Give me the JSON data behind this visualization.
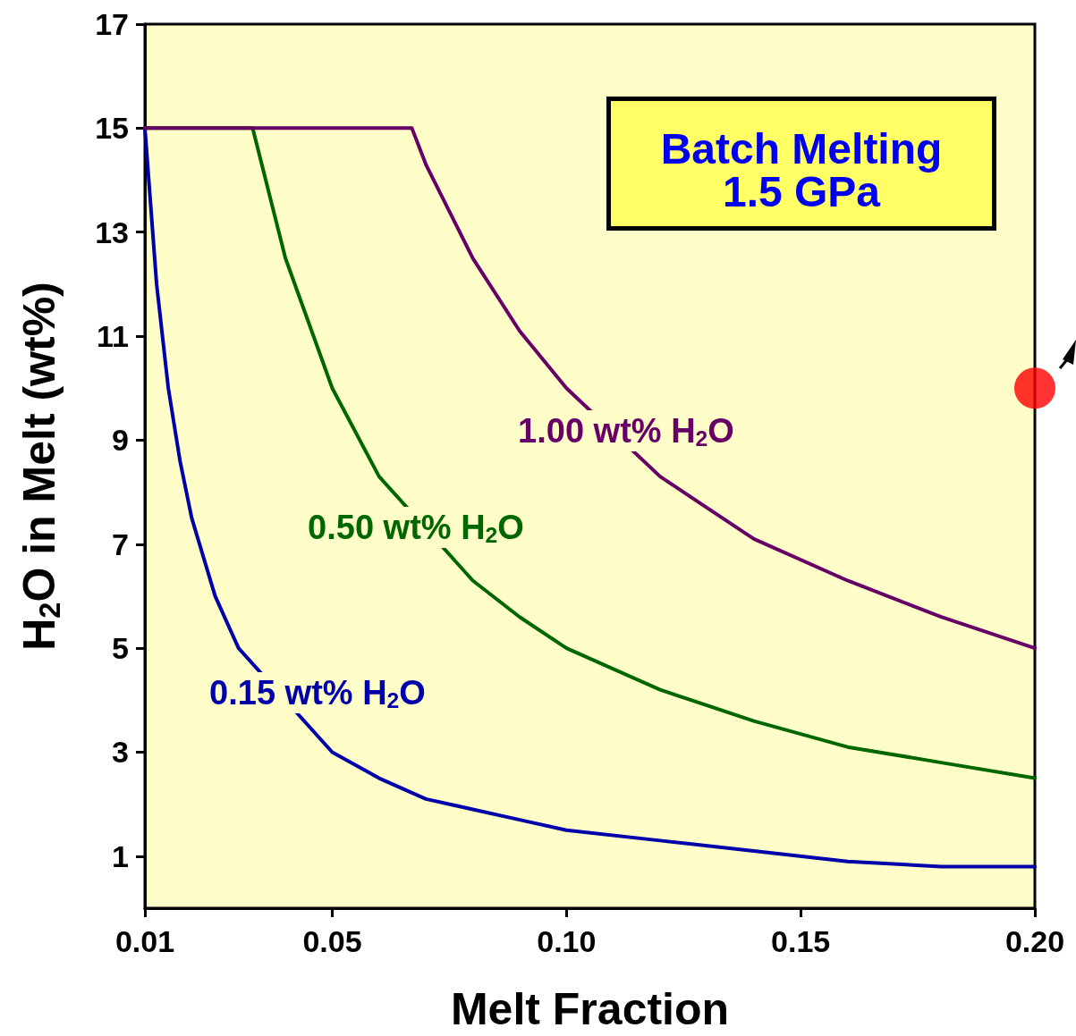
{
  "chart_data": {
    "type": "line",
    "title": "Batch Melting",
    "subtitle": "1.5 GPa",
    "xlabel": "Melt Fraction",
    "ylabel": "H$_{2}$O in Melt (wt%)",
    "xlim": [
      0.01,
      0.2
    ],
    "xticks": [
      0.01,
      0.05,
      {
        "value": 0.1,
        "label": "0.10"
      },
      0.15,
      {
        "value": 0.2,
        "label": "0.20"
      }
    ],
    "ylim": [
      0,
      17
    ],
    "yticks": [
      1,
      3,
      5,
      7,
      9,
      11,
      13,
      15,
      17
    ],
    "grid": false,
    "marker": "none",
    "line_style": "solid",
    "series": [
      {
        "color": "#0000aa",
        "x": [
          0.01,
          0.0125,
          0.015,
          0.0175,
          0.02,
          0.025,
          0.03,
          0.05,
          0.06,
          0.07,
          0.08,
          0.09,
          0.1,
          0.12,
          0.14,
          0.16,
          0.18,
          0.2
        ],
        "values": [
          15,
          12,
          10,
          8.6,
          7.5,
          6,
          5,
          3,
          2.5,
          2.1,
          1.9,
          1.7,
          1.5,
          1.3,
          1.1,
          0.9,
          0.8,
          0.8
        ]
      },
      {
        "color": "#006600",
        "x": [
          0.01,
          0.033,
          0.04,
          0.05,
          0.06,
          0.08,
          0.09,
          0.1,
          0.12,
          0.14,
          0.16,
          0.18,
          0.2
        ],
        "values": [
          15,
          15,
          12.5,
          10,
          8.3,
          6.3,
          5.6,
          5,
          4.2,
          3.6,
          3.1,
          2.8,
          2.5
        ]
      },
      {
        "color": "#660066",
        "x": [
          0.01,
          0.067,
          0.07,
          0.08,
          0.09,
          0.1,
          0.12,
          0.14,
          0.16,
          0.18,
          0.2
        ],
        "values": [
          15,
          15,
          14.3,
          12.5,
          11.1,
          10,
          8.3,
          7.1,
          6.3,
          5.6,
          5
        ]
      },
      {
        "type": "scatter",
        "color": "#ff0000",
        "marker": "circle",
        "x": [
          0.2
        ],
        "values": [
          10
        ]
      }
    ],
    "annotations": [
      "0.15 wt% H$_{2}$O",
      "0.50 wt% H$_{2}$O",
      "1.00 wt% H$_{2}$O"
    ]
  }
}
